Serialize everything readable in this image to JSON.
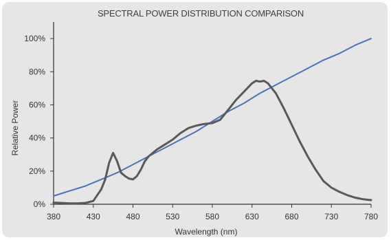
{
  "chart_data": {
    "type": "line",
    "title": "SPECTRAL POWER DISTRIBUTION COMPARISON",
    "xlabel": "Wavelength (nm)",
    "ylabel": "Relative Power",
    "xlim": [
      380,
      780
    ],
    "ylim": [
      0,
      110
    ],
    "x_ticks": [
      380,
      430,
      480,
      530,
      580,
      630,
      680,
      730,
      780
    ],
    "x_tick_labels": [
      "380",
      "430",
      "480",
      "530",
      "580",
      "630",
      "680",
      "730",
      "780"
    ],
    "y_ticks": [
      0,
      20,
      40,
      60,
      80,
      100
    ],
    "y_tick_labels": [
      "0%",
      "20%",
      "40%",
      "60%",
      "80%",
      "100%"
    ],
    "grid": false,
    "series": [
      {
        "color": "#4a72b8",
        "x": [
          380,
          400,
          420,
          440,
          460,
          480,
          500,
          520,
          540,
          560,
          580,
          600,
          620,
          640,
          660,
          680,
          700,
          720,
          740,
          760,
          780
        ],
        "y": [
          5,
          8,
          11,
          15,
          19,
          24,
          29,
          34,
          39,
          44,
          50,
          56,
          61,
          67,
          72,
          77,
          82,
          87,
          91,
          96,
          100
        ]
      },
      {
        "color": "#595959",
        "x": [
          380,
          390,
          400,
          410,
          420,
          430,
          440,
          445,
          450,
          455,
          460,
          465,
          470,
          475,
          480,
          485,
          490,
          495,
          500,
          510,
          520,
          530,
          540,
          550,
          560,
          570,
          580,
          590,
          600,
          610,
          620,
          630,
          635,
          640,
          645,
          650,
          660,
          670,
          680,
          690,
          700,
          710,
          720,
          730,
          740,
          750,
          760,
          770,
          780
        ],
        "y": [
          1,
          0.8,
          0.5,
          0.5,
          0.8,
          2,
          9,
          15,
          25,
          31,
          26,
          19,
          17,
          15.5,
          15,
          17,
          21,
          26,
          29,
          33,
          36,
          39,
          43,
          46,
          47.5,
          48.5,
          49,
          51,
          57,
          63,
          68,
          73,
          74.5,
          74,
          74.5,
          73,
          67,
          58,
          48,
          38,
          29,
          21,
          14,
          10,
          7.5,
          5.5,
          4,
          3,
          2.5
        ]
      }
    ]
  }
}
